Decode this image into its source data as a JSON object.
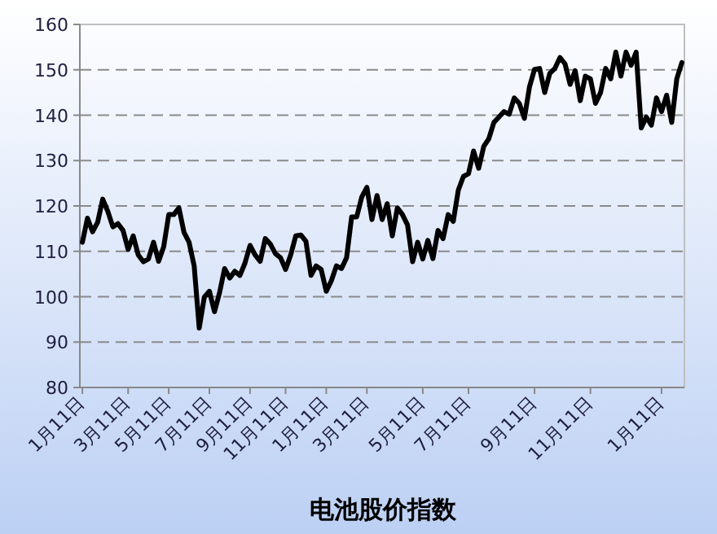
{
  "chart_data": {
    "type": "line",
    "xlabel": "电池股价指数",
    "categories": [
      "1月11日",
      null,
      null,
      null,
      null,
      null,
      null,
      null,
      null,
      "3月11日",
      null,
      null,
      null,
      null,
      null,
      null,
      null,
      "5月11日",
      null,
      null,
      null,
      null,
      null,
      null,
      null,
      "7月11日",
      null,
      null,
      null,
      null,
      null,
      null,
      null,
      "9月11日",
      null,
      null,
      null,
      null,
      null,
      null,
      "11月11日",
      null,
      null,
      null,
      null,
      null,
      null,
      null,
      "1月11日",
      null,
      null,
      null,
      null,
      null,
      null,
      null,
      "3月11日",
      null,
      null,
      null,
      null,
      null,
      null,
      null,
      null,
      null,
      null,
      "5月11日",
      null,
      null,
      null,
      null,
      null,
      null,
      null,
      null,
      "7月11日",
      null,
      null,
      null,
      null,
      null,
      null,
      null,
      null,
      null,
      null,
      null,
      null,
      "9月11日",
      null,
      null,
      null,
      null,
      null,
      null,
      null,
      null,
      null,
      null,
      "11月11日",
      null,
      null,
      null,
      null,
      null,
      null,
      null,
      null,
      null,
      null,
      null,
      null,
      null,
      "1月11日",
      null,
      null,
      null,
      null
    ],
    "series": [
      {
        "color": "#000000",
        "values": [
          112.0,
          117.3,
          114.3,
          116.4,
          121.5,
          118.8,
          115.4,
          116.1,
          114.6,
          110.4,
          113.4,
          109.2,
          107.7,
          108.3,
          112.0,
          107.8,
          111.0,
          118.1,
          118.1,
          119.6,
          114.2,
          112.0,
          106.8,
          93.1,
          99.9,
          101.2,
          96.7,
          100.9,
          106.2,
          104.1,
          105.6,
          104.7,
          107.4,
          111.3,
          109.2,
          107.8,
          112.8,
          111.6,
          109.5,
          108.6,
          106.0,
          109.2,
          113.4,
          113.6,
          112.2,
          104.7,
          106.8,
          106.0,
          101.2,
          103.5,
          106.8,
          106.2,
          108.6,
          117.6,
          117.6,
          122.0,
          124.1,
          117.0,
          122.3,
          117.0,
          120.5,
          113.4,
          119.6,
          118.1,
          115.8,
          107.7,
          112.0,
          108.3,
          112.4,
          108.4,
          114.6,
          112.8,
          118.1,
          116.6,
          123.5,
          126.5,
          127.1,
          132.1,
          128.3,
          133.1,
          134.8,
          138.4,
          139.6,
          140.8,
          140.2,
          143.8,
          142.6,
          139.3,
          146.2,
          150.1,
          150.3,
          145.0,
          149.2,
          150.3,
          152.7,
          151.3,
          146.8,
          149.8,
          143.2,
          148.6,
          148.0,
          142.6,
          145.0,
          150.3,
          148.0,
          153.9,
          148.6,
          153.9,
          151.0,
          153.9,
          137.2,
          139.6,
          137.8,
          143.8,
          140.8,
          144.4,
          138.4,
          148.0,
          151.6
        ]
      }
    ],
    "ylim": [
      80,
      160
    ],
    "yticks": [
      80,
      90,
      100,
      110,
      120,
      130,
      140,
      150,
      160
    ],
    "grid": "y",
    "line_style": "solid",
    "marker": "none"
  }
}
